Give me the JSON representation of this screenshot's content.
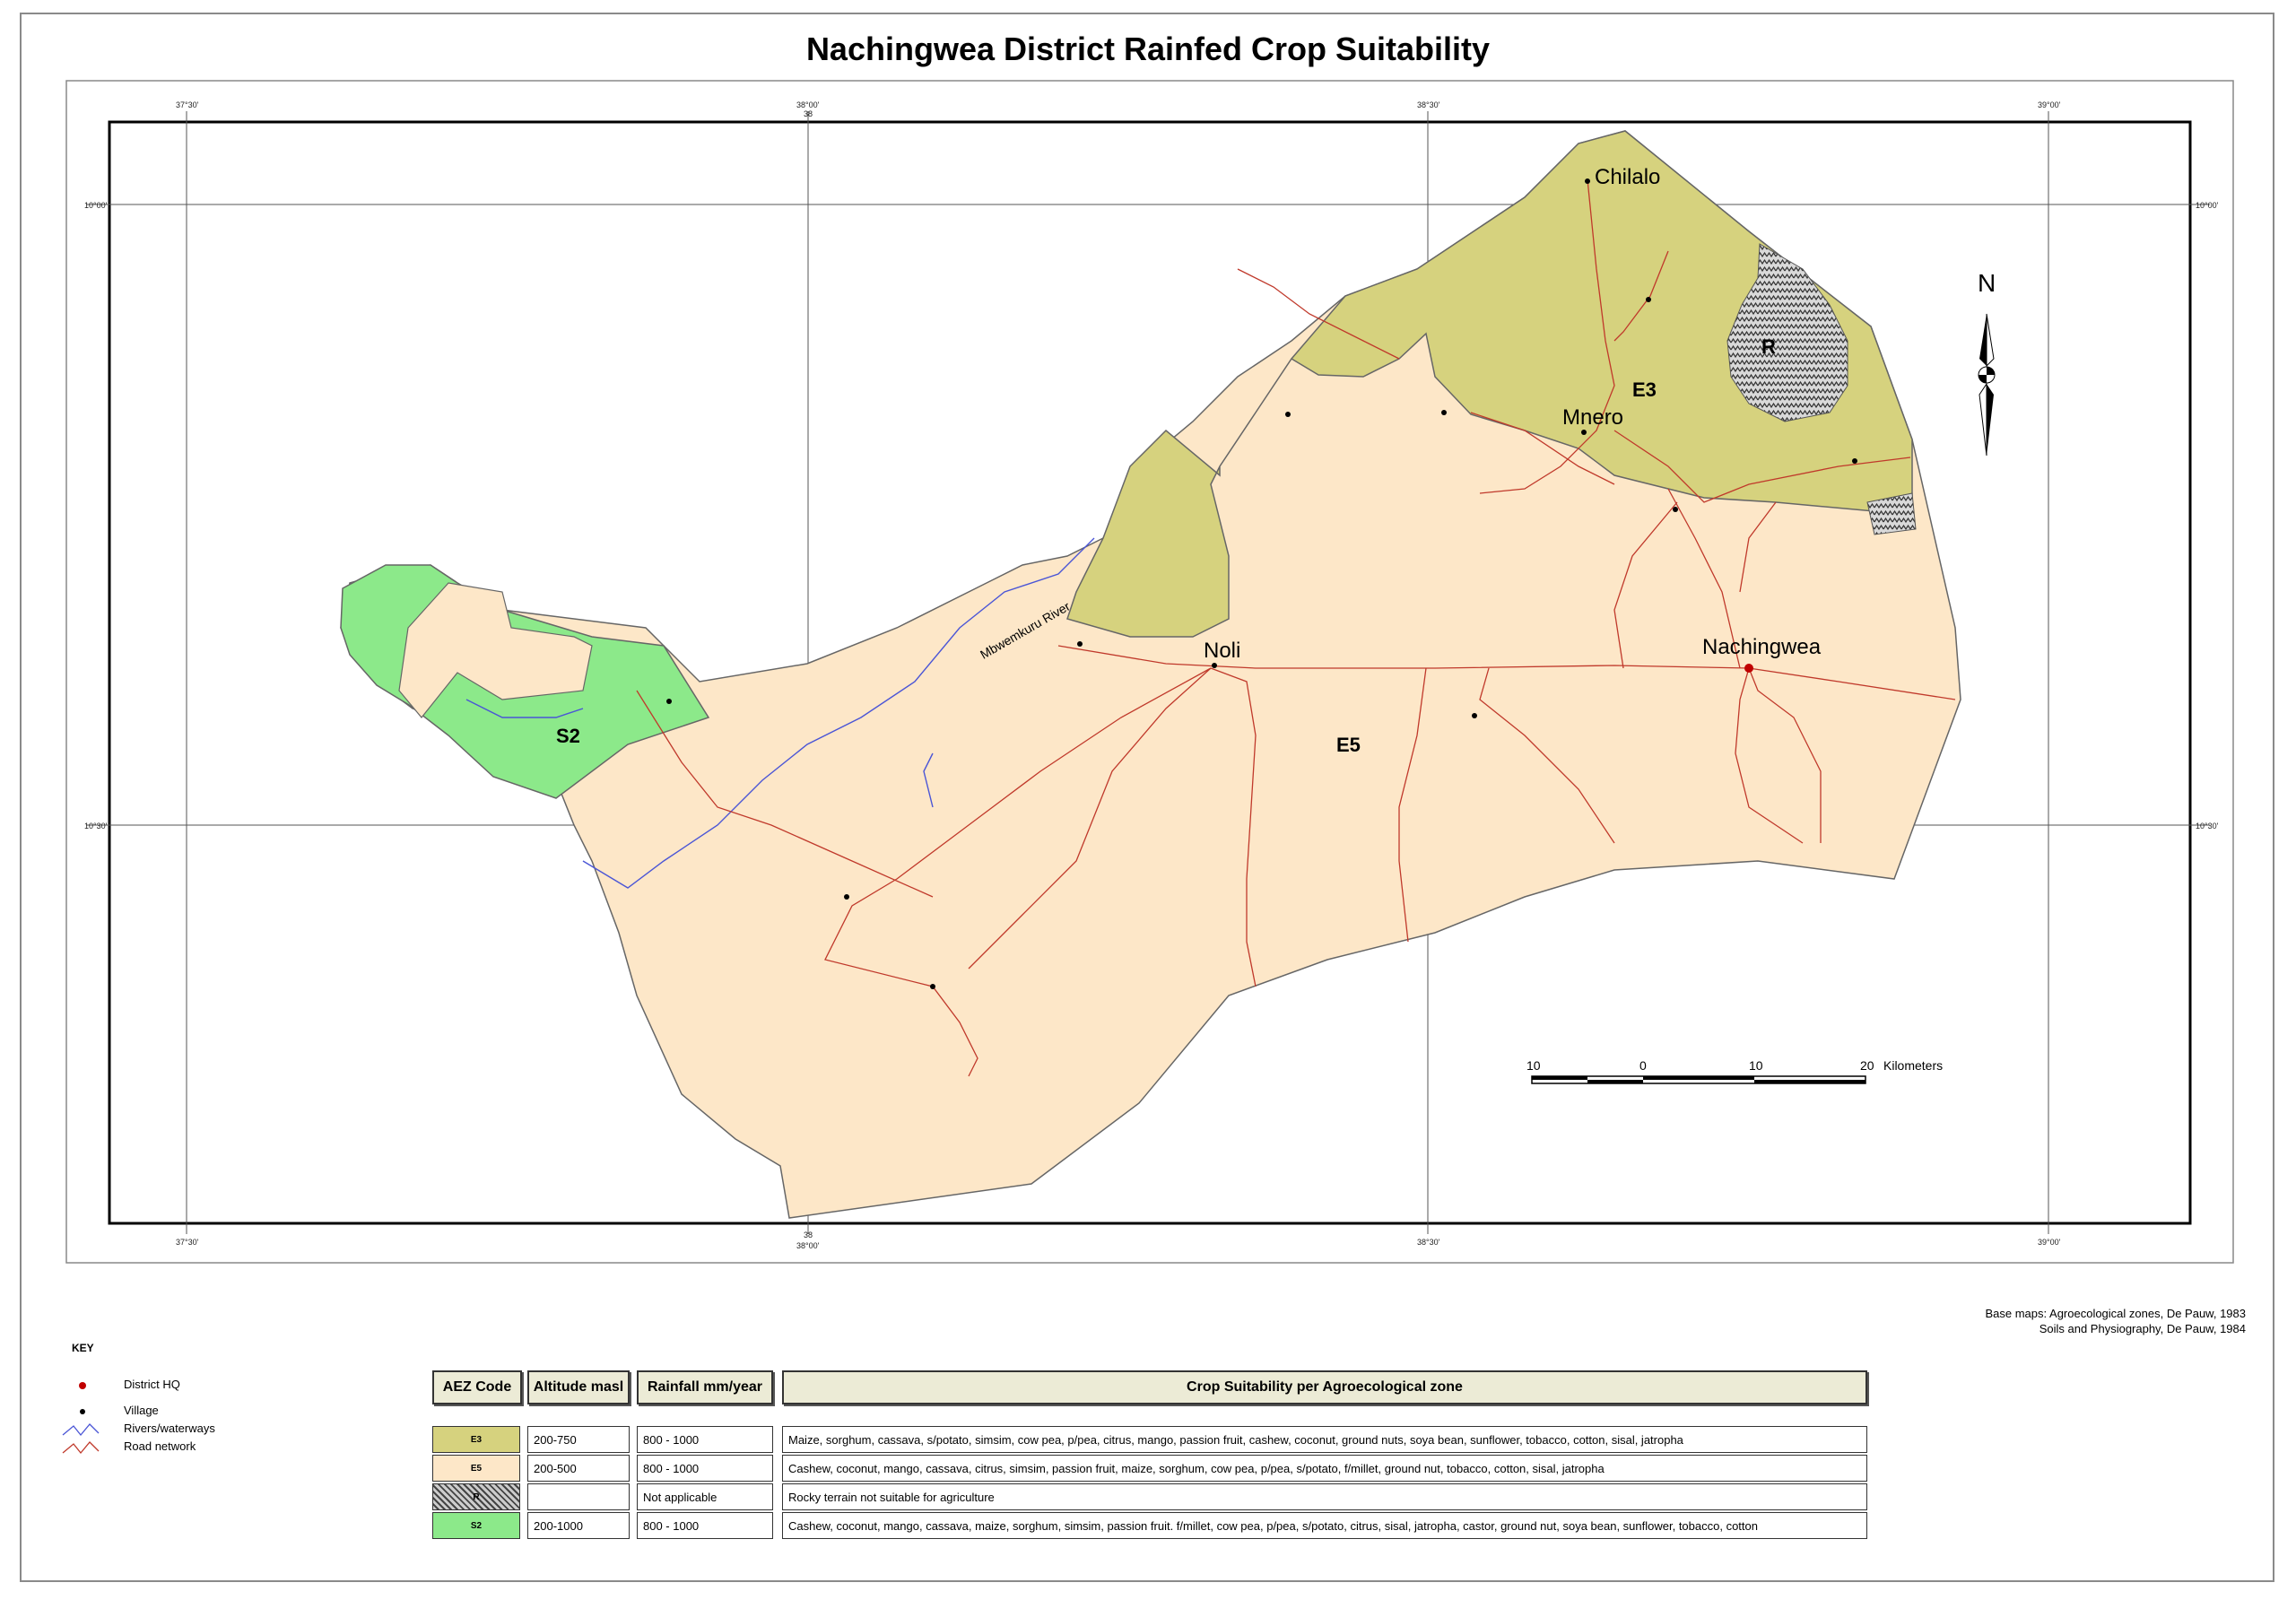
{
  "title": "Nachingwea District Rainfed Crop Suitability",
  "grid_labels": {
    "top": [
      "37°30'",
      "38°00'",
      "38°30'",
      "39°00'"
    ],
    "top_sub": "38",
    "bottom": [
      "37°30'",
      "38°00'",
      "38°30'",
      "39°00'"
    ],
    "bottom_sub": "38",
    "left": [
      "10°00'",
      "10°30'"
    ],
    "right": [
      "10°00'",
      "10°30'"
    ]
  },
  "places": {
    "chilalo": "Chilalo",
    "mnero": "Mnero",
    "noli": "Noli",
    "nachingwea": "Nachingwea"
  },
  "zone_labels": {
    "e3": "E3",
    "e5": "E5",
    "s2": "S2",
    "r": "R"
  },
  "river_label": "Mbwemkuru River",
  "north_label": "N",
  "scale_bar": {
    "ticks": [
      "10",
      "0",
      "10",
      "20"
    ],
    "unit": "Kilometers"
  },
  "source": [
    "Base maps: Agroecological zones, De Pauw, 1983",
    "Soils and Physiography, De Pauw, 1984"
  ],
  "key": {
    "title": "KEY",
    "items": [
      "District HQ",
      "Village",
      "Rivers/waterways",
      "Road network"
    ]
  },
  "legend": {
    "headers": [
      "AEZ Code",
      "Altitude masl",
      "Rainfall mm/year",
      "Crop Suitability per Agroecological zone"
    ],
    "rows": [
      {
        "code": "E3",
        "altitude": "200-750",
        "rainfall": "800 - 1000",
        "crops": "Maize, sorghum, cassava, s/potato, simsim, cow pea, p/pea,  citrus, mango, passion fruit, cashew, coconut, ground nuts, soya bean, sunflower, tobacco, cotton, sisal, jatropha"
      },
      {
        "code": "E5",
        "altitude": "200-500",
        "rainfall": "800 - 1000",
        "crops": "Cashew, coconut, mango, cassava, citrus, simsim, passion fruit, maize, sorghum, cow pea, p/pea, s/potato, f/millet, ground nut, tobacco, cotton,  sisal, jatropha"
      },
      {
        "code": "R",
        "altitude": "",
        "rainfall": "Not applicable",
        "crops": "Rocky terrain not suitable for agriculture"
      },
      {
        "code": "S2",
        "altitude": "200-1000",
        "rainfall": "800 - 1000",
        "crops": "Cashew, coconut, mango, cassava, maize, sorghum, simsim, passion fruit. f/millet, cow pea, p/pea, s/potato, citrus, sisal, jatropha, castor, ground nut, soya bean, sunflower, tobacco, cotton"
      }
    ]
  },
  "colors": {
    "e3": "#d6d27e",
    "e5": "#fde7c8",
    "s2": "#8ce98a",
    "road": "#c0392b",
    "river": "#4a55d6",
    "hq": "#c00000"
  }
}
